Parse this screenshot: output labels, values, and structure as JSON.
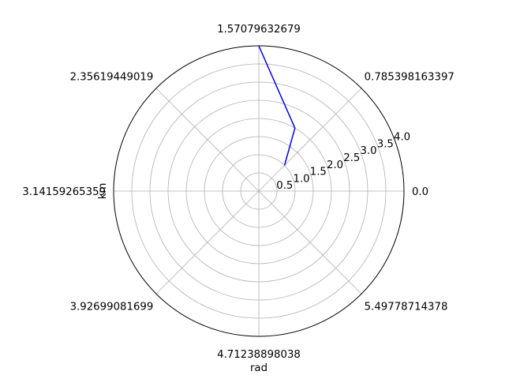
{
  "chart_data": {
    "type": "line",
    "projection": "polar",
    "title": "",
    "xlabel": "rad",
    "ylabel": "km",
    "theta_tick_labels": [
      "0.0",
      "0.785398163397",
      "1.57079632679",
      "2.35619449019",
      "3.14159265359",
      "3.92699081699",
      "4.71238898038",
      "5.49778714378"
    ],
    "theta_ticks": [
      0,
      0.785398163397,
      1.57079632679,
      2.35619449019,
      3.14159265359,
      3.92699081699,
      4.71238898038,
      5.49778714378
    ],
    "r_tick_labels": [
      "0.5",
      "1.0",
      "1.5",
      "2.0",
      "2.5",
      "3.0",
      "3.5",
      "4.0"
    ],
    "r_ticks": [
      0.5,
      1.0,
      1.5,
      2.0,
      2.5,
      3.0,
      3.5,
      4.0
    ],
    "rlim": [
      0,
      4.0
    ],
    "grid": true,
    "series": [
      {
        "color": "#0000ff",
        "theta": [
          0.785,
          1.05,
          1.571
        ],
        "r": [
          1.0,
          2.0,
          4.0
        ],
        "points": [
          {
            "theta": 0.785,
            "r": 1.0
          },
          {
            "theta": 1.05,
            "r": 2.0
          },
          {
            "theta": 1.571,
            "r": 4.0
          }
        ]
      }
    ]
  }
}
